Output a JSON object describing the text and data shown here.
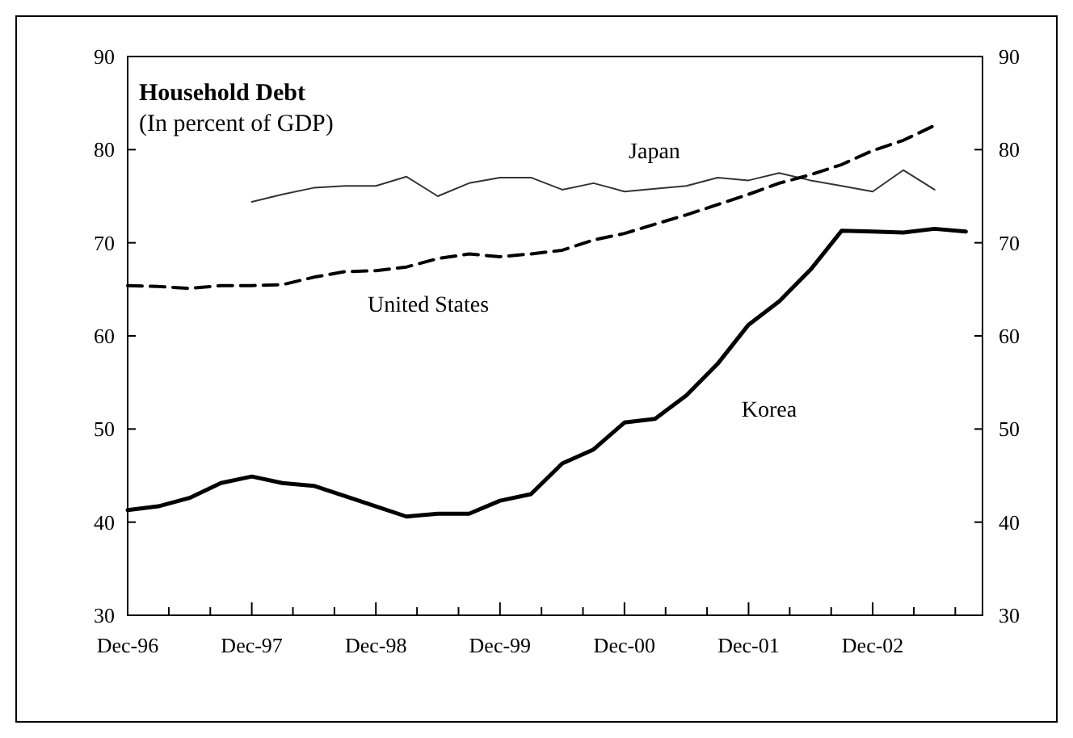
{
  "chart_data": {
    "type": "line",
    "title": "Household Debt",
    "subtitle": "(In percent of GDP)",
    "xlim": [
      "1996-12",
      "2003-10-20"
    ],
    "xticks": [
      {
        "value": "1996-12",
        "label": "Dec-96"
      },
      {
        "value": "1997-04",
        "label": null
      },
      {
        "value": "1997-08",
        "label": null
      },
      {
        "value": "1997-12",
        "label": "Dec-97"
      },
      {
        "value": "1998-04",
        "label": null
      },
      {
        "value": "1998-08",
        "label": null
      },
      {
        "value": "1998-12",
        "label": "Dec-98"
      },
      {
        "value": "1999-04",
        "label": null
      },
      {
        "value": "1999-08",
        "label": null
      },
      {
        "value": "1999-12",
        "label": "Dec-99"
      },
      {
        "value": "2000-04",
        "label": null
      },
      {
        "value": "2000-08",
        "label": null
      },
      {
        "value": "2000-12",
        "label": "Dec-00"
      },
      {
        "value": "2001-04",
        "label": null
      },
      {
        "value": "2001-08",
        "label": null
      },
      {
        "value": "2001-12",
        "label": "Dec-01"
      },
      {
        "value": "2002-04",
        "label": null
      },
      {
        "value": "2002-08",
        "label": null
      },
      {
        "value": "2002-12",
        "label": "Dec-02"
      },
      {
        "value": "2003-04",
        "label": null
      },
      {
        "value": "2003-08",
        "label": null
      }
    ],
    "ylim": [
      30,
      90
    ],
    "yticks": [
      30,
      40,
      50,
      60,
      70,
      80,
      90
    ],
    "y2lim": [
      30,
      90
    ],
    "y2ticks": [
      30,
      40,
      50,
      60,
      70,
      80,
      90
    ],
    "grid": false,
    "legend": false,
    "marker": "none",
    "series": [
      {
        "name": "Japan",
        "color": "#333333",
        "line_style": "solid",
        "x": [
          "1997-12",
          "1998-03",
          "1998-06",
          "1998-09",
          "1998-12",
          "1999-03",
          "1999-06",
          "1999-09",
          "1999-12",
          "2000-03",
          "2000-06",
          "2000-09",
          "2000-12",
          "2001-03",
          "2001-06",
          "2001-09",
          "2001-12",
          "2002-03",
          "2002-06",
          "2002-09",
          "2002-12",
          "2003-03",
          "2003-06"
        ],
        "values": [
          74.4,
          75.2,
          75.9,
          76.1,
          76.1,
          77.1,
          75.0,
          76.4,
          77.0,
          77.0,
          75.7,
          76.4,
          75.5,
          75.8,
          76.1,
          77.0,
          76.7,
          77.5,
          76.7,
          76.1,
          75.5,
          77.8,
          75.7
        ]
      },
      {
        "name": "United States",
        "color": "#000000",
        "line_style": "dashed",
        "x": [
          "1996-12",
          "1997-03",
          "1997-06",
          "1997-09",
          "1997-12",
          "1998-03",
          "1998-06",
          "1998-09",
          "1998-12",
          "1999-03",
          "1999-06",
          "1999-09",
          "1999-12",
          "2000-03",
          "2000-06",
          "2000-09",
          "2000-12",
          "2001-03",
          "2001-06",
          "2001-09",
          "2001-12",
          "2002-03",
          "2002-06",
          "2002-09",
          "2002-12",
          "2003-03",
          "2003-06"
        ],
        "values": [
          65.4,
          65.3,
          65.1,
          65.4,
          65.4,
          65.5,
          66.3,
          66.9,
          67.0,
          67.4,
          68.3,
          68.8,
          68.5,
          68.8,
          69.2,
          70.3,
          71.0,
          72.0,
          73.0,
          74.1,
          75.2,
          76.4,
          77.3,
          78.4,
          79.9,
          81.0,
          82.6
        ]
      },
      {
        "name": "Korea",
        "color": "#000000",
        "line_style": "solid",
        "x": [
          "1996-12",
          "1997-03",
          "1997-06",
          "1997-09",
          "1997-12",
          "1998-03",
          "1998-06",
          "1998-09",
          "1998-12",
          "1999-03",
          "1999-06",
          "1999-09",
          "1999-12",
          "2000-03",
          "2000-06",
          "2000-09",
          "2000-12",
          "2001-03",
          "2001-06",
          "2001-09",
          "2001-12",
          "2002-03",
          "2002-06",
          "2002-09",
          "2002-12",
          "2003-03",
          "2003-06",
          "2003-09"
        ],
        "values": [
          41.3,
          41.7,
          42.6,
          44.2,
          44.9,
          44.2,
          43.9,
          42.8,
          41.7,
          40.6,
          40.9,
          40.9,
          42.3,
          43.0,
          46.3,
          47.8,
          50.7,
          51.1,
          53.6,
          57.0,
          61.2,
          63.7,
          67.1,
          71.3,
          71.2,
          71.1,
          71.5,
          71.2
        ]
      }
    ]
  }
}
